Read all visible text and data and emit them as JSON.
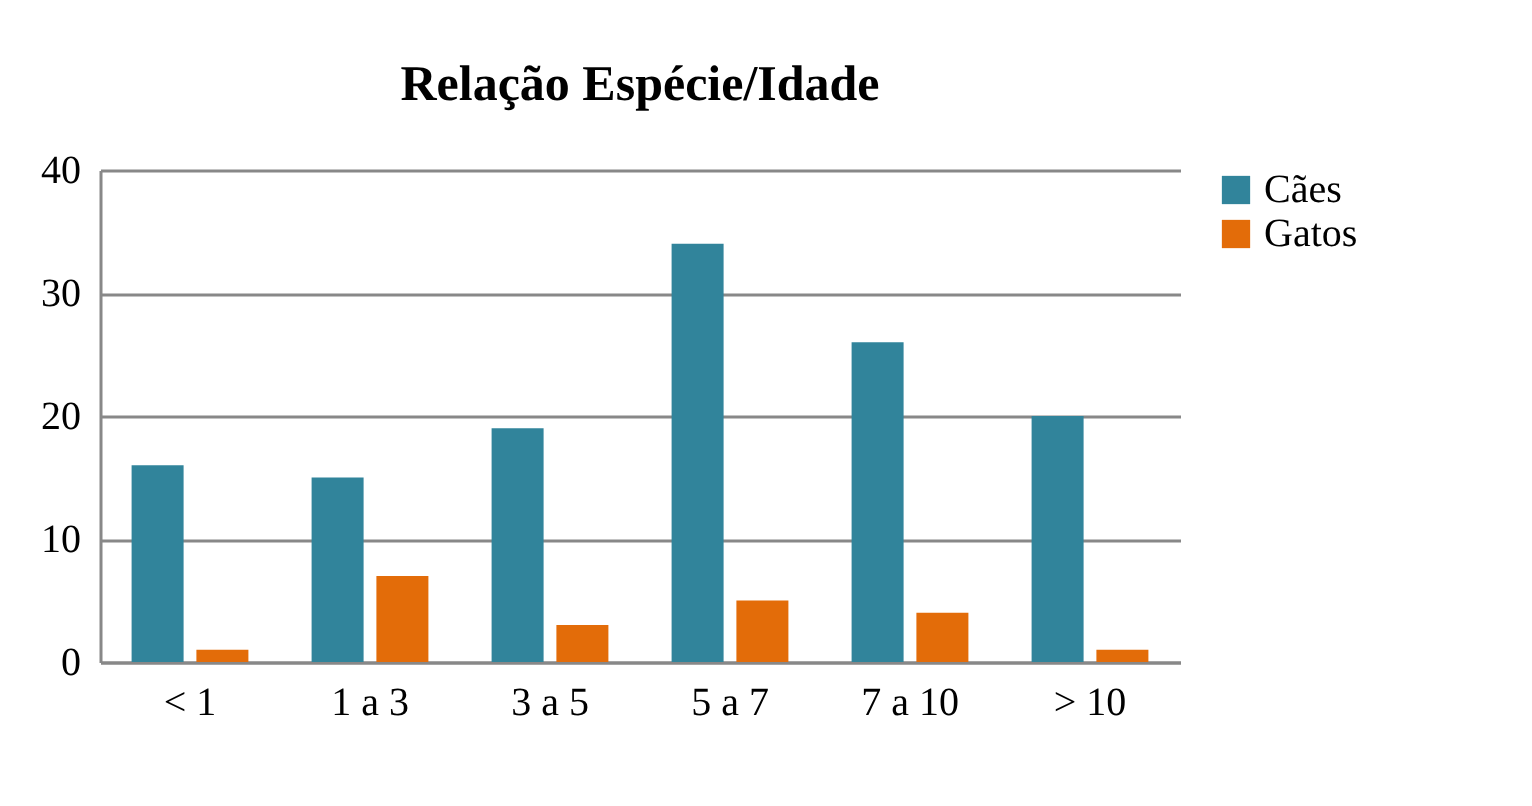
{
  "chart_data": {
    "type": "bar",
    "title": "Relação Espécie/Idade",
    "categories": [
      "< 1",
      "1 a 3",
      "3 a 5",
      "5 a 7",
      "7 a 10",
      "> 10"
    ],
    "series": [
      {
        "name": "Cães",
        "color": "#31849b",
        "values": [
          16,
          15,
          19,
          34,
          26,
          20
        ]
      },
      {
        "name": "Gatos",
        "color": "#e36c09",
        "values": [
          1,
          7,
          3,
          5,
          4,
          1
        ]
      }
    ],
    "ylim": [
      0,
      40
    ],
    "yticks": [
      0,
      10,
      20,
      30,
      40
    ],
    "grid": "y",
    "legend": "right"
  }
}
